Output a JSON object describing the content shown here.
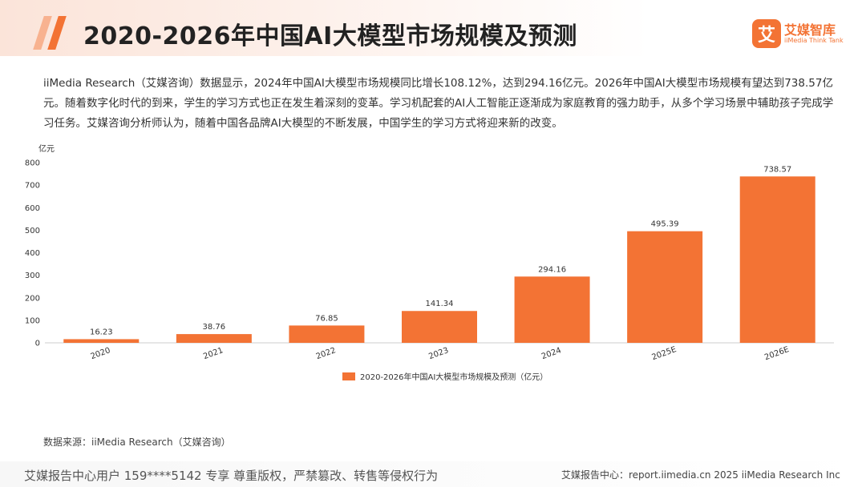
{
  "header": {
    "title": "2020-2026年中国AI大模型市场规模及预测",
    "logo_mark": "艾",
    "logo_name": "艾媒智库",
    "logo_sub": "iiMedia Think Tank"
  },
  "description": "iiMedia Research（艾媒咨询）数据显示，2024年中国AI大模型市场规模同比增长108.12%，达到294.16亿元。2026年中国AI大模型市场规模有望达到738.57亿元。随着数字化时代的到来，学生的学习方式也正在发生着深刻的变革。学习机配套的AI人工智能正逐渐成为家庭教育的强力助手，从多个学习场景中辅助孩子完成学习任务。艾媒咨询分析师认为，随着中国各品牌AI大模型的不断发展，中国学生的学习方式将迎来新的改变。",
  "chart_data": {
    "type": "bar",
    "title": "",
    "unit_label": "亿元",
    "xlabel": "",
    "ylabel": "",
    "categories": [
      "2020",
      "2021",
      "2022",
      "2023",
      "2024",
      "2025E",
      "2026E"
    ],
    "values": [
      16.23,
      38.76,
      76.85,
      141.34,
      294.16,
      495.39,
      738.57
    ],
    "value_labels": [
      "16.23",
      "38.76",
      "76.85",
      "141.34",
      "294.16",
      "495.39",
      "738.57"
    ],
    "yticks": [
      0,
      100,
      200,
      300,
      400,
      500,
      600,
      700,
      800
    ],
    "ylim": [
      0,
      800
    ],
    "grid": false,
    "legend": {
      "position": "bottom-center",
      "entries": [
        "2020-2026年中国AI大模型市场规模及预测（亿元）"
      ]
    },
    "bar_color": "#f37334"
  },
  "source": "数据来源：iiMedia Research（艾媒咨询）",
  "footer": {
    "left": "艾媒报告中心用户 159****5142 专享 尊重版权，严禁篡改、转售等侵权行为",
    "right": "艾媒报告中心：report.iimedia.cn   2025 iiMedia Research Inc"
  }
}
